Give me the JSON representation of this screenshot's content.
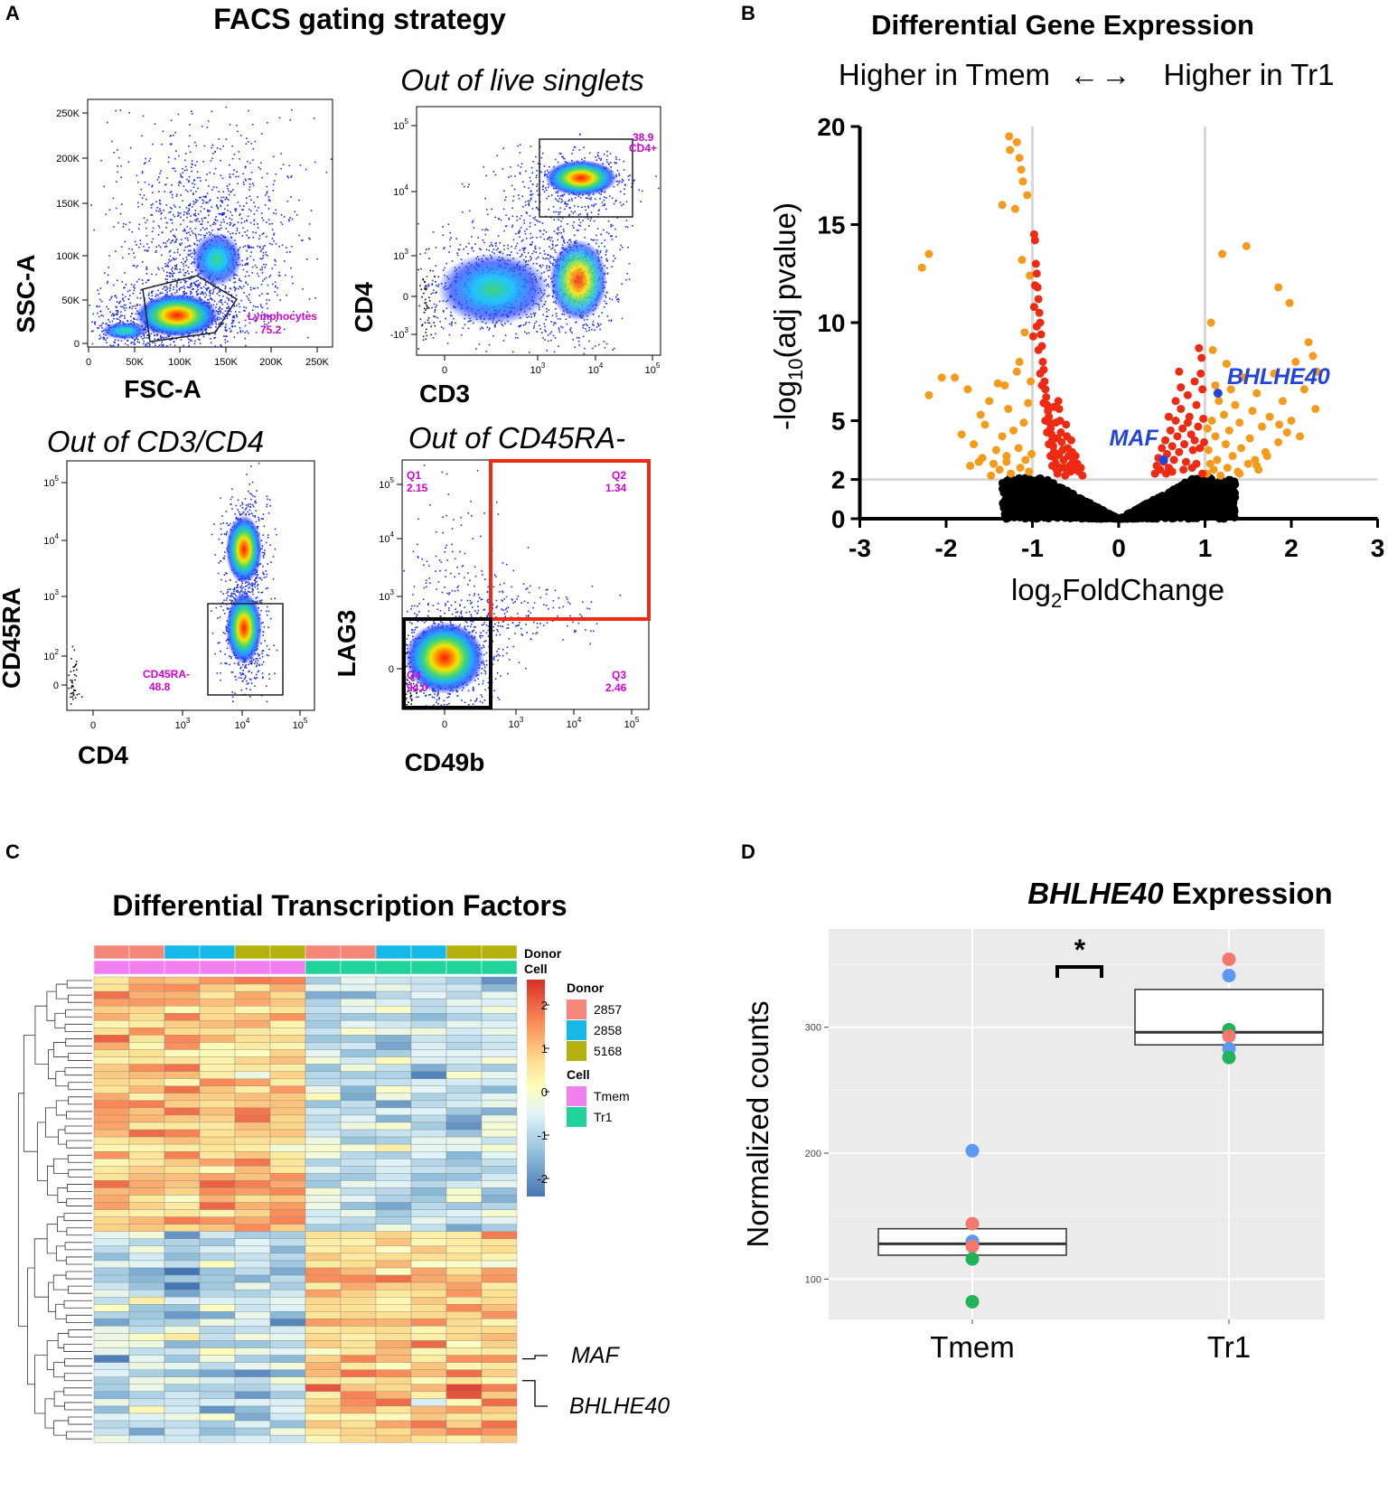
{
  "panel_letters": [
    "A",
    "B",
    "C",
    "D"
  ],
  "panelA": {
    "title": "FACS gating strategy",
    "p1": {
      "xlabel": "FSC-A",
      "ylabel": "SSC-A",
      "xticks": [
        "0",
        "50K",
        "100K",
        "150K",
        "200K",
        "250K"
      ],
      "yticks": [
        "0",
        "50K",
        "100K",
        "150K",
        "200K",
        "250K"
      ],
      "gate_label": "Lymphocytes",
      "gate_value": "75.2"
    },
    "p2": {
      "subtitle": "Out of live singlets",
      "xlabel": "CD3",
      "ylabel": "CD4",
      "xticks": [
        "0",
        "10^3",
        "10^4",
        "10^5"
      ],
      "yticks": [
        "-10^3",
        "0",
        "10^3",
        "10^4",
        "10^5"
      ],
      "gate_label": "CD4+",
      "gate_value": "38.9"
    },
    "p3": {
      "subtitle": "Out of CD3/CD4",
      "xlabel": "CD4",
      "ylabel": "CD45RA",
      "xticks": [
        "0",
        "10^3",
        "10^4",
        "10^5"
      ],
      "yticks": [
        "0",
        "10^2",
        "10^3",
        "10^4",
        "10^5"
      ],
      "gate_label": "CD45RA-",
      "gate_value": "48.8"
    },
    "p4": {
      "subtitle": "Out of CD45RA-",
      "xlabel": "CD49b",
      "ylabel": "LAG3",
      "xticks": [
        "0",
        "10^3",
        "10^4",
        "10^5"
      ],
      "yticks": [
        "0",
        "10^3",
        "10^4",
        "10^5"
      ],
      "quadrants": [
        {
          "name": "Q1",
          "value": "2.15"
        },
        {
          "name": "Q2",
          "value": "1.34"
        },
        {
          "name": "Q3",
          "value": "2.46"
        },
        {
          "name": "Q4",
          "value": "94.0"
        }
      ]
    }
  },
  "chart_data": [
    {
      "type": "scatter",
      "panel": "B",
      "title": "Differential Gene Expression",
      "subtitle_left": "Higher in Tmem",
      "subtitle_right": "Higher in Tr1",
      "xlabel_main": "log",
      "xlabel_sub": "2",
      "xlabel_rest": "FoldChange",
      "ylabel_pre": "-log",
      "ylabel_sub": "10",
      "ylabel_post": "(adj pvalue)",
      "xlim": [
        -3,
        3
      ],
      "ylim": [
        0,
        20
      ],
      "xticks": [
        "-3",
        "-2",
        "-1",
        "0",
        "1",
        "2",
        "3"
      ],
      "yticks": [
        "0",
        "2",
        "5",
        "10",
        "15",
        "20"
      ],
      "ytick_values": [
        0,
        2,
        5,
        10,
        15,
        20
      ],
      "thresholds": {
        "log2fc": [
          -1,
          1
        ],
        "neglog10p": 2
      },
      "highlighted_genes": [
        {
          "gene": "MAF",
          "x": 0.52,
          "y": 3.0
        },
        {
          "gene": "BHLHE40",
          "x": 1.15,
          "y": 6.4
        }
      ],
      "colors": {
        "nonsig": "#000000",
        "sig": "#ee2a12",
        "sig_fc": "#f59a1b",
        "gene": "#2244dd",
        "threshold": "#d8d8d8"
      },
      "orange_points": [
        [
          -2.28,
          12.8
        ],
        [
          -2.2,
          13.5
        ],
        [
          -2.2,
          6.3
        ],
        [
          -2.05,
          7.2
        ],
        [
          -1.9,
          7.2
        ],
        [
          -1.82,
          4.3
        ],
        [
          -1.75,
          6.6
        ],
        [
          -1.68,
          3.8
        ],
        [
          -1.6,
          5.3
        ],
        [
          -1.55,
          4.8
        ],
        [
          -1.5,
          6.0
        ],
        [
          -1.45,
          2.8
        ],
        [
          -1.42,
          3.5
        ],
        [
          -1.4,
          6.9
        ],
        [
          -1.38,
          2.5
        ],
        [
          -1.35,
          4.2
        ],
        [
          -1.32,
          6.8
        ],
        [
          -1.3,
          3.2
        ],
        [
          -1.28,
          5.6
        ],
        [
          -1.25,
          2.3
        ],
        [
          -1.22,
          4.5
        ],
        [
          -1.2,
          15.8
        ],
        [
          -1.18,
          7.5
        ],
        [
          -1.16,
          3.6
        ],
        [
          -1.15,
          8.0
        ],
        [
          -1.14,
          2.6
        ],
        [
          -1.12,
          13.2
        ],
        [
          -1.1,
          4.9
        ],
        [
          -1.09,
          9.5
        ],
        [
          -1.08,
          3.0
        ],
        [
          -1.06,
          16.5
        ],
        [
          -1.05,
          5.9
        ],
        [
          -1.04,
          2.4
        ],
        [
          -1.03,
          12.4
        ],
        [
          -1.02,
          7.0
        ],
        [
          -1.01,
          3.3
        ],
        [
          -1.27,
          19.5
        ],
        [
          -1.26,
          18.8
        ],
        [
          -1.18,
          19.2
        ],
        [
          -1.15,
          18.4
        ],
        [
          -1.13,
          17.8
        ],
        [
          -1.11,
          17.2
        ],
        [
          -1.35,
          16.0
        ],
        [
          -1.72,
          2.7
        ],
        [
          -1.62,
          2.9
        ],
        [
          -1.48,
          2.2
        ],
        [
          -1.58,
          3.1
        ],
        [
          -1.3,
          2.9
        ],
        [
          1.02,
          2.3
        ],
        [
          1.04,
          3.5
        ],
        [
          1.06,
          2.8
        ],
        [
          1.08,
          5.0
        ],
        [
          1.1,
          2.5
        ],
        [
          1.12,
          4.2
        ],
        [
          1.14,
          3.0
        ],
        [
          1.16,
          6.0
        ],
        [
          1.18,
          2.2
        ],
        [
          1.2,
          13.5
        ],
        [
          1.22,
          5.3
        ],
        [
          1.24,
          3.8
        ],
        [
          1.26,
          2.6
        ],
        [
          1.28,
          4.5
        ],
        [
          1.3,
          6.6
        ],
        [
          1.32,
          3.2
        ],
        [
          1.35,
          5.8
        ],
        [
          1.38,
          2.4
        ],
        [
          1.4,
          4.9
        ],
        [
          1.42,
          3.6
        ],
        [
          1.45,
          7.2
        ],
        [
          1.48,
          13.9
        ],
        [
          1.5,
          2.8
        ],
        [
          1.52,
          4.1
        ],
        [
          1.55,
          5.5
        ],
        [
          1.58,
          3.0
        ],
        [
          1.6,
          6.4
        ],
        [
          1.62,
          2.5
        ],
        [
          1.66,
          4.7
        ],
        [
          1.7,
          3.4
        ],
        [
          1.75,
          5.2
        ],
        [
          1.8,
          7.4
        ],
        [
          1.85,
          3.9
        ],
        [
          1.9,
          6.0
        ],
        [
          1.95,
          4.4
        ],
        [
          1.98,
          11.0
        ],
        [
          2.0,
          5.0
        ],
        [
          2.05,
          8.0
        ],
        [
          2.1,
          4.2
        ],
        [
          2.15,
          6.6
        ],
        [
          2.2,
          9.0
        ],
        [
          2.25,
          8.3
        ],
        [
          2.28,
          5.6
        ],
        [
          2.3,
          7.5
        ],
        [
          1.85,
          11.8
        ],
        [
          1.07,
          10.0
        ],
        [
          1.09,
          8.6
        ],
        [
          1.12,
          6.8
        ],
        [
          1.25,
          7.9
        ],
        [
          1.03,
          4.6
        ],
        [
          1.6,
          2.7
        ],
        [
          1.72,
          3.2
        ],
        [
          1.4,
          2.3
        ],
        [
          1.86,
          4.8
        ]
      ],
      "red_points": [
        [
          -0.98,
          14.5
        ],
        [
          -0.97,
          14.2
        ],
        [
          -0.96,
          13.0
        ],
        [
          -0.95,
          12.5
        ],
        [
          -0.94,
          11.8
        ],
        [
          -0.93,
          11.2
        ],
        [
          -0.92,
          10.5
        ],
        [
          -0.91,
          10.0
        ],
        [
          -0.9,
          9.4
        ],
        [
          -0.89,
          8.8
        ],
        [
          -0.88,
          8.0
        ],
        [
          -0.87,
          7.6
        ],
        [
          -0.86,
          7.0
        ],
        [
          -0.85,
          6.6
        ],
        [
          -0.84,
          6.2
        ],
        [
          -0.83,
          5.8
        ],
        [
          -0.82,
          5.5
        ],
        [
          -0.81,
          5.2
        ],
        [
          -0.8,
          4.9
        ],
        [
          -0.79,
          4.6
        ],
        [
          -0.78,
          4.3
        ],
        [
          -0.77,
          4.0
        ],
        [
          -0.76,
          3.7
        ],
        [
          -0.75,
          3.4
        ],
        [
          -0.74,
          3.1
        ],
        [
          -0.73,
          2.8
        ],
        [
          -0.72,
          2.5
        ],
        [
          -0.71,
          2.3
        ],
        [
          -0.7,
          6.0
        ],
        [
          -0.69,
          5.6
        ],
        [
          -0.68,
          5.0
        ],
        [
          -0.67,
          4.4
        ],
        [
          -0.66,
          3.9
        ],
        [
          -0.65,
          3.5
        ],
        [
          -0.64,
          3.0
        ],
        [
          -0.63,
          2.6
        ],
        [
          -0.62,
          2.2
        ],
        [
          -0.61,
          4.8
        ],
        [
          -0.6,
          4.2
        ],
        [
          -0.59,
          3.6
        ],
        [
          -0.58,
          3.2
        ],
        [
          -0.57,
          2.7
        ],
        [
          -0.56,
          2.4
        ],
        [
          -0.55,
          4.0
        ],
        [
          -0.54,
          3.4
        ],
        [
          -0.53,
          2.9
        ],
        [
          -0.52,
          2.5
        ],
        [
          -0.5,
          3.2
        ],
        [
          -0.48,
          2.8
        ],
        [
          -0.46,
          2.4
        ],
        [
          -0.44,
          2.6
        ],
        [
          -0.42,
          2.2
        ],
        [
          -0.95,
          9.8
        ],
        [
          -0.93,
          8.6
        ],
        [
          -0.91,
          7.4
        ],
        [
          -0.89,
          6.8
        ],
        [
          -0.87,
          5.9
        ],
        [
          -0.85,
          5.0
        ],
        [
          -0.83,
          4.4
        ],
        [
          -0.81,
          3.8
        ],
        [
          -0.79,
          3.2
        ],
        [
          -0.77,
          2.7
        ],
        [
          -0.75,
          5.7
        ],
        [
          -0.73,
          4.9
        ],
        [
          -0.71,
          4.1
        ],
        [
          -0.69,
          3.3
        ],
        [
          -0.67,
          2.6
        ],
        [
          -0.97,
          11.9
        ],
        [
          -0.98,
          10.8
        ],
        [
          -0.99,
          9.3
        ],
        [
          0.42,
          2.3
        ],
        [
          0.44,
          2.7
        ],
        [
          0.46,
          3.1
        ],
        [
          0.48,
          2.5
        ],
        [
          0.5,
          3.6
        ],
        [
          0.52,
          2.9
        ],
        [
          0.54,
          4.0
        ],
        [
          0.56,
          3.3
        ],
        [
          0.58,
          2.6
        ],
        [
          0.6,
          4.5
        ],
        [
          0.62,
          3.7
        ],
        [
          0.64,
          3.0
        ],
        [
          0.66,
          5.0
        ],
        [
          0.68,
          4.2
        ],
        [
          0.7,
          3.4
        ],
        [
          0.72,
          5.6
        ],
        [
          0.74,
          4.6
        ],
        [
          0.76,
          3.8
        ],
        [
          0.78,
          2.9
        ],
        [
          0.8,
          6.3
        ],
        [
          0.82,
          5.2
        ],
        [
          0.84,
          4.3
        ],
        [
          0.86,
          3.5
        ],
        [
          0.88,
          7.0
        ],
        [
          0.9,
          5.8
        ],
        [
          0.92,
          4.7
        ],
        [
          0.94,
          3.6
        ],
        [
          0.96,
          8.2
        ],
        [
          0.97,
          6.6
        ],
        [
          0.98,
          5.1
        ],
        [
          0.99,
          3.9
        ],
        [
          0.93,
          8.7
        ],
        [
          0.95,
          7.4
        ],
        [
          0.72,
          6.7
        ],
        [
          0.66,
          6.0
        ],
        [
          0.58,
          5.2
        ],
        [
          0.62,
          2.4
        ],
        [
          0.75,
          2.5
        ],
        [
          0.85,
          2.6
        ],
        [
          0.9,
          2.8
        ],
        [
          0.97,
          2.3
        ],
        [
          0.7,
          7.5
        ],
        [
          0.8,
          4.9
        ],
        [
          0.88,
          4.0
        ],
        [
          0.55,
          2.3
        ]
      ]
    },
    {
      "type": "heatmap",
      "panel": "C",
      "title": "Differential Transcription Factors",
      "rows": 64,
      "cols": 12,
      "top_annotation_labels": [
        "Donor",
        "Cell"
      ],
      "donor_per_column": [
        "2857",
        "2857",
        "2858",
        "2858",
        "5168",
        "5168",
        "2857",
        "2857",
        "2858",
        "2858",
        "5168",
        "5168"
      ],
      "cell_per_column": [
        "Tmem",
        "Tmem",
        "Tmem",
        "Tmem",
        "Tmem",
        "Tmem",
        "Tr1",
        "Tr1",
        "Tr1",
        "Tr1",
        "Tr1",
        "Tr1"
      ],
      "legend": {
        "donor_title": "Donor",
        "donors": [
          {
            "label": "2857",
            "color": "#f4877a"
          },
          {
            "label": "2858",
            "color": "#15b8e6"
          },
          {
            "label": "5168",
            "color": "#b4b00e"
          }
        ],
        "cell_title": "Cell",
        "cells": [
          {
            "label": "Tmem",
            "color": "#f27ff0"
          },
          {
            "label": "Tr1",
            "color": "#1fd39a"
          }
        ],
        "scale_ticks": [
          "2",
          "1",
          "0",
          "-1",
          "-2"
        ],
        "scale_values": [
          2,
          1,
          0,
          -1,
          -2
        ],
        "scale_colors": [
          "#d73027",
          "#fc8d59",
          "#fee090",
          "#ffffbf",
          "#e0f3f8",
          "#91bfdb",
          "#4575b4"
        ]
      },
      "row_labels": [
        {
          "gene": "MAF",
          "row": 52
        },
        {
          "gene": "BHLHE40",
          "row": 55
        }
      ]
    },
    {
      "type": "box",
      "panel": "D",
      "title_italic": "BHLHE40",
      "title_rest": " Expression",
      "ylabel": "Normalized counts",
      "categories": [
        "Tmem",
        "Tr1"
      ],
      "ylim": [
        68,
        378
      ],
      "yticks": [
        "100",
        "200",
        "300"
      ],
      "ytick_values": [
        100,
        200,
        300
      ],
      "significance": "*",
      "boxes": [
        {
          "q1": 119,
          "median": 128,
          "q3": 140
        },
        {
          "q1": 286,
          "median": 296,
          "q3": 330
        }
      ],
      "points": [
        {
          "cat": 0,
          "y": 202,
          "color": "#5b9af2"
        },
        {
          "cat": 0,
          "y": 144,
          "color": "#f4776d"
        },
        {
          "cat": 0,
          "y": 130,
          "color": "#5b9af2"
        },
        {
          "cat": 0,
          "y": 126,
          "color": "#f4776d"
        },
        {
          "cat": 0,
          "y": 116,
          "color": "#21b35a"
        },
        {
          "cat": 0,
          "y": 82,
          "color": "#21b35a"
        },
        {
          "cat": 1,
          "y": 354,
          "color": "#f4776d"
        },
        {
          "cat": 1,
          "y": 341,
          "color": "#5b9af2"
        },
        {
          "cat": 1,
          "y": 298,
          "color": "#21b35a"
        },
        {
          "cat": 1,
          "y": 293,
          "color": "#f4776d"
        },
        {
          "cat": 1,
          "y": 283,
          "color": "#5b9af2"
        },
        {
          "cat": 1,
          "y": 276,
          "color": "#21b35a"
        }
      ]
    }
  ]
}
